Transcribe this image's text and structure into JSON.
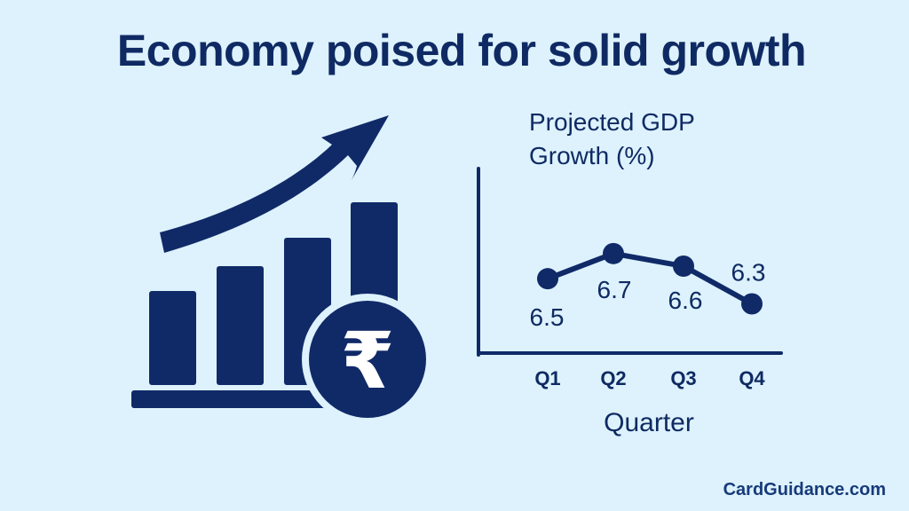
{
  "page": {
    "title": "Economy poised for solid growth",
    "brand": "CardGuidance.com"
  },
  "illustration": {
    "icon": "bar-chart-rupee-growth-icon",
    "currency_symbol": "₹",
    "color": "#102a68"
  },
  "colors": {
    "background": "#ddf2fc",
    "ink": "#0f2a63"
  },
  "chart_data": {
    "type": "line",
    "title_lines": [
      "Projected GDP",
      "Growth (%)"
    ],
    "xlabel": "Quarter",
    "ylabel": "",
    "categories": [
      "Q1",
      "Q2",
      "Q3",
      "Q4"
    ],
    "series": [
      {
        "values": [
          6.5,
          6.7,
          6.6,
          6.3
        ],
        "labels": [
          "6.5",
          "6.7",
          "6.6",
          "6.3"
        ]
      }
    ],
    "ylim": [
      6.0,
      7.2
    ],
    "grid": false,
    "legend": "none",
    "color": "#102a68"
  }
}
